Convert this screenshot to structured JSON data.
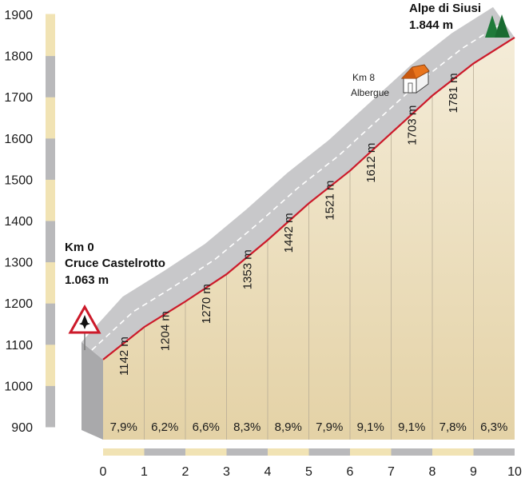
{
  "chart_data": {
    "type": "area",
    "title": "",
    "xlabel": "",
    "ylabel": "",
    "ylim": [
      900,
      1900
    ],
    "xlim": [
      0,
      10
    ],
    "y_ticks": [
      "900",
      "1000",
      "1100",
      "1200",
      "1300",
      "1400",
      "1500",
      "1600",
      "1700",
      "1800",
      "1900"
    ],
    "x_ticks": [
      "0",
      "1",
      "2",
      "3",
      "4",
      "5",
      "6",
      "7",
      "8",
      "9",
      "10"
    ],
    "x": [
      0,
      1,
      2,
      3,
      4,
      5,
      6,
      7,
      8,
      9,
      10
    ],
    "elevation": [
      1063,
      1142,
      1204,
      1270,
      1353,
      1442,
      1521,
      1612,
      1703,
      1781,
      1844
    ],
    "elevation_labels": [
      "1142 m",
      "1204 m",
      "1270 m",
      "1353 m",
      "1442 m",
      "1521 m",
      "1612 m",
      "1703 m",
      "1781 m"
    ],
    "gradients": [
      "7,9%",
      "6,2%",
      "6,6%",
      "8,3%",
      "8,9%",
      "7,9%",
      "9,1%",
      "9,1%",
      "7,8%",
      "6,3%"
    ],
    "start": {
      "km": "Km 0",
      "name": "Cruce Castelrotto",
      "altitude": "1.063 m"
    },
    "finish": {
      "name": "Alpe di Siusi",
      "altitude": "1.844 m"
    },
    "waypoint": {
      "km": "Km 8",
      "name": "Albergue"
    },
    "colors": {
      "profile_line": "#cc1a2a",
      "road_band": "#c8c8ca",
      "fill_top": "#f4ecd8",
      "fill_bottom": "#e4d2a6",
      "scale_light": "#f1e3b4",
      "scale_dark": "#b9b9bb",
      "finish_trees": "#1f7a3a",
      "house_roof": "#e8741c"
    }
  }
}
